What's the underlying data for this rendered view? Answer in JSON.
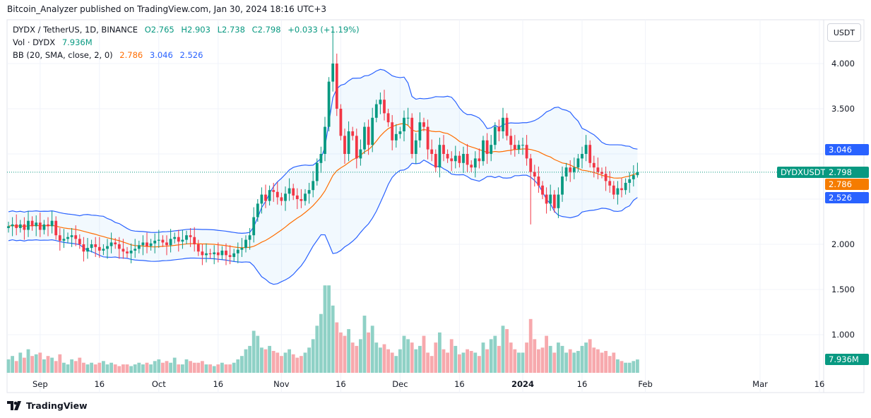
{
  "publisher_line": "Bitcoin_Analyzer published on TradingView.com, Jan 30, 2024 18:16 UTC+3",
  "legend": {
    "symbol": "DYDX / TetherUS, 1D, BINANCE",
    "open": "O2.765",
    "high": "H2.903",
    "low": "L2.738",
    "close": "C2.798",
    "change": "+0.033 (+1.19%)",
    "vol_label": "Vol · DYDX",
    "vol_value": "7.936M",
    "bb_label": "BB (20, SMA, close, 2, 0)",
    "bb_basis": "2.786",
    "bb_upper": "3.046",
    "bb_lower": "2.526"
  },
  "currency_button": "USDT",
  "price_labels": {
    "symbol_tag": "DYDXUSDT",
    "last": "2.798",
    "basis": "2.786",
    "upper": "3.046",
    "lower": "2.526",
    "volume": "7.936M"
  },
  "footer": {
    "brand": "TradingView"
  },
  "colors": {
    "up": "#089981",
    "down": "#f23645",
    "bb_band": "#2962ff",
    "bb_basis": "#ff6d00",
    "vol_up": "#8fd1c6",
    "vol_down": "#f7a9ad"
  },
  "chart_data": {
    "type": "candlestick",
    "symbol": "DYDXUSDT",
    "interval": "1D",
    "period": "2023-08-24 to 2024-01-30",
    "y_ticks": [
      "4.000",
      "3.500",
      "2.000",
      "1.500",
      "1.000"
    ],
    "ylim": [
      0.8,
      4.5
    ],
    "x_ticks": [
      {
        "label": "Sep",
        "date": "2023-09-01"
      },
      {
        "label": "16",
        "date": "2023-09-16"
      },
      {
        "label": "Oct",
        "date": "2023-10-01"
      },
      {
        "label": "16",
        "date": "2023-10-16"
      },
      {
        "label": "Nov",
        "date": "2023-11-01"
      },
      {
        "label": "16",
        "date": "2023-11-16"
      },
      {
        "label": "Dec",
        "date": "2023-12-01"
      },
      {
        "label": "16",
        "date": "2023-12-16"
      },
      {
        "label": "2024",
        "date": "2024-01-01"
      },
      {
        "label": "16",
        "date": "2024-01-16"
      },
      {
        "label": "Feb",
        "date": "2024-02-01"
      },
      {
        "label": "Mar",
        "date": "2024-03-01"
      },
      {
        "label": "16",
        "date": "2024-03-16"
      }
    ],
    "close": [
      2.2,
      2.22,
      2.18,
      2.22,
      2.16,
      2.26,
      2.2,
      2.24,
      2.16,
      2.22,
      2.2,
      2.26,
      2.1,
      2.04,
      2.06,
      2.08,
      2.1,
      2.06,
      2.0,
      1.92,
      1.96,
      2.0,
      1.97,
      1.93,
      1.95,
      1.98,
      2.02,
      2.0,
      1.95,
      1.92,
      1.9,
      1.93,
      1.95,
      1.99,
      2.02,
      1.98,
      2.01,
      2.04,
      2.05,
      2.02,
      1.99,
      2.06,
      2.08,
      2.03,
      2.05,
      2.1,
      2.08,
      2.0,
      1.92,
      1.88,
      1.9,
      1.89,
      1.91,
      1.88,
      1.93,
      1.88,
      1.86,
      1.9,
      1.94,
      1.96,
      2.05,
      2.1,
      2.3,
      2.45,
      2.55,
      2.48,
      2.6,
      2.58,
      2.52,
      2.48,
      2.56,
      2.62,
      2.54,
      2.5,
      2.48,
      2.56,
      2.6,
      2.7,
      2.9,
      3.0,
      3.3,
      3.8,
      4.0,
      3.5,
      3.2,
      3.0,
      3.25,
      3.2,
      2.95,
      3.05,
      3.3,
      3.1,
      3.4,
      3.55,
      3.6,
      3.45,
      3.35,
      3.15,
      3.22,
      3.25,
      3.4,
      3.4,
      3.0,
      3.15,
      3.35,
      3.3,
      3.05,
      3.0,
      2.85,
      3.1,
      3.0,
      2.95,
      2.92,
      2.98,
      2.9,
      3.0,
      2.88,
      2.85,
      2.95,
      2.92,
      3.15,
      3.0,
      3.1,
      3.3,
      3.25,
      3.4,
      3.2,
      3.1,
      3.05,
      3.1,
      3.1,
      2.95,
      2.8,
      2.75,
      2.65,
      2.55,
      2.45,
      2.55,
      2.4,
      2.55,
      2.75,
      2.85,
      2.8,
      2.85,
      2.95,
      3.0,
      3.1,
      2.9,
      2.85,
      2.8,
      2.78,
      2.7,
      2.65,
      2.55,
      2.62,
      2.6,
      2.68,
      2.72,
      2.765,
      2.798
    ],
    "last_candle": {
      "open": 2.765,
      "high": 2.903,
      "low": 2.738,
      "close": 2.798
    },
    "notable_wicks": {
      "2023-11-14": {
        "high": 4.37
      },
      "2024-01-03": {
        "low": 2.22
      }
    },
    "volume_millions": [
      8,
      10,
      7,
      12,
      9,
      14,
      10,
      11,
      12,
      8,
      10,
      9,
      7,
      11,
      6,
      5,
      8,
      7,
      9,
      6,
      5,
      6,
      5,
      6,
      7,
      5,
      6,
      5,
      4,
      5,
      5,
      4,
      5,
      6,
      5,
      6,
      5,
      7,
      8,
      6,
      7,
      6,
      9,
      5,
      5,
      8,
      7,
      6,
      6,
      7,
      5,
      5,
      4,
      5,
      6,
      5,
      5,
      6,
      8,
      10,
      14,
      16,
      25,
      22,
      15,
      14,
      16,
      13,
      12,
      10,
      12,
      14,
      11,
      9,
      10,
      12,
      15,
      20,
      28,
      35,
      52,
      52,
      40,
      30,
      24,
      22,
      26,
      18,
      16,
      20,
      34,
      24,
      28,
      18,
      15,
      17,
      14,
      12,
      10,
      14,
      22,
      20,
      18,
      14,
      16,
      22,
      12,
      10,
      18,
      24,
      14,
      12,
      20,
      16,
      11,
      12,
      14,
      13,
      12,
      10,
      18,
      14,
      20,
      22,
      16,
      28,
      26,
      18,
      14,
      12,
      12,
      18,
      32,
      20,
      14,
      15,
      22,
      16,
      12,
      18,
      16,
      12,
      14,
      12,
      13,
      16,
      18,
      20,
      15,
      14,
      12,
      13,
      10,
      12,
      8,
      7,
      6,
      6,
      7,
      7.936
    ],
    "indicator": {
      "name": "BB (20, SMA, close, 2, 0)",
      "basis": 2.786,
      "upper": 3.046,
      "lower": 2.526
    },
    "grid": true
  }
}
